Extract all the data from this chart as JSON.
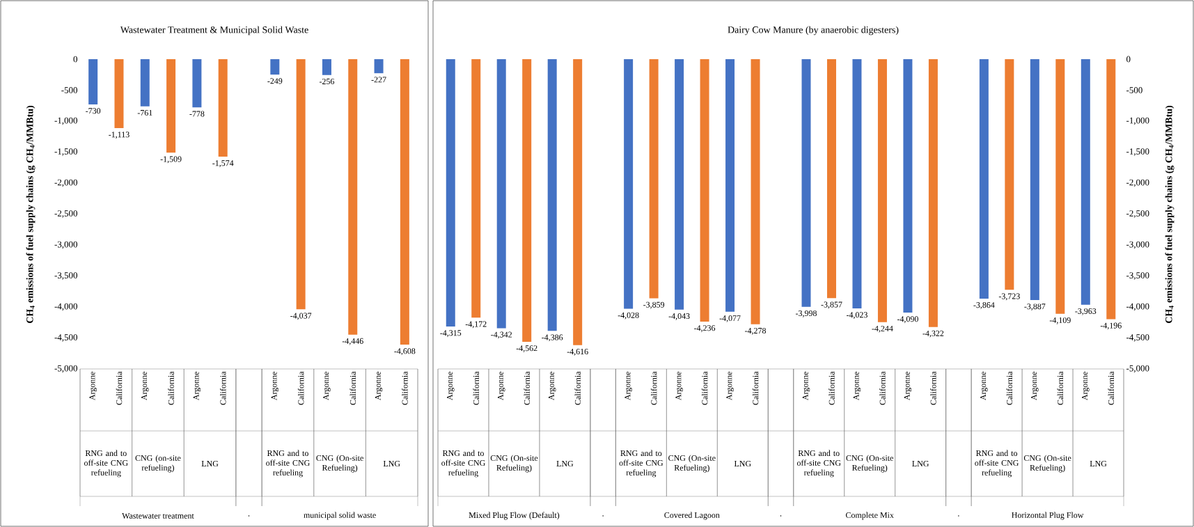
{
  "chart_data": [
    {
      "type": "bar",
      "title": "Wastewater Treatment & Municipal Solid Waste",
      "ylabel": "CH$_{4}$ emissions of fuel supply chains (g CH$_{4}$/MMBtu)",
      "categories": [
        "Argonne",
        "California",
        "Argonne",
        "California",
        "Argonne",
        "California",
        null,
        "Argonne",
        "California",
        "Argonne",
        "California",
        "Argonne",
        "California"
      ],
      "values": [
        -730,
        -1113,
        -761,
        -1509,
        -778,
        -1574,
        null,
        -249,
        -4037,
        -256,
        -4446,
        -227,
        -4608
      ],
      "value_labels": [
        "-730",
        "-1,113",
        "-761",
        "-1,509",
        "-778",
        "-1,574",
        null,
        "-249",
        "-4,037",
        "-256",
        "-4,446",
        "-227",
        "-4,608"
      ],
      "colors": [
        "#4472c4",
        "#ed7d31",
        "#4472c4",
        "#ed7d31",
        "#4472c4",
        "#ed7d31",
        null,
        "#4472c4",
        "#ed7d31",
        "#4472c4",
        "#ed7d31",
        "#4472c4",
        "#ed7d31"
      ],
      "ylim": [
        -5000,
        0
      ],
      "yticks": [
        {
          "value": -5000,
          "label": "-5,000"
        },
        {
          "value": -4500,
          "label": "-4,500"
        },
        {
          "value": -4000,
          "label": "-4,000"
        },
        {
          "value": -3500,
          "label": "-3,500"
        },
        {
          "value": -3000,
          "label": "-3,000"
        },
        {
          "value": -2500,
          "label": "-2,500"
        },
        {
          "value": -2000,
          "label": "-2,000"
        },
        {
          "value": -1500,
          "label": "-1,500"
        },
        {
          "value": -1000,
          "label": "-1,000"
        },
        {
          "value": -500,
          "label": "-500"
        },
        0
      ],
      "annotations": [
        "RNG and to off-site CNG refueling",
        "CNG (on-site refueling)",
        "LNG",
        "RNG and to off-site CNG refueling",
        "CNG (On-site Refueling)",
        "LNG",
        "Wastewater treatment",
        ".",
        "municipal solid waste"
      ]
    },
    {
      "type": "bar",
      "title": "Dairy Cow Manure (by anaerobic digesters)",
      "ylabel": "CH$_{4}$ emissions of fuel supply chains (g CH$_{4}$/MMBtu)",
      "categories": [
        "Argonne",
        "California",
        "Argonne",
        "California",
        "Argonne",
        "California",
        null,
        "Argonne",
        "California",
        "Argonne",
        "California",
        "Argonne",
        "California",
        null,
        "Argonne",
        "California",
        "Argonne",
        "California",
        "Argonne",
        "California",
        null,
        "Argonne",
        "California",
        "Argonne",
        "California",
        "Argonne",
        "California"
      ],
      "values": [
        -4315,
        -4172,
        -4342,
        -4562,
        -4386,
        -4616,
        null,
        -4028,
        -3859,
        -4043,
        -4236,
        -4077,
        -4278,
        null,
        -3998,
        -3857,
        -4023,
        -4244,
        -4090,
        -4322,
        null,
        -3864,
        -3723,
        -3887,
        -4109,
        -3963,
        -4196
      ],
      "value_labels": [
        "-4,315",
        "-4,172",
        "-4,342",
        "-4,562",
        "-4,386",
        "-4,616",
        null,
        "-4,028",
        "-3,859",
        "-4,043",
        "-4,236",
        "-4,077",
        "-4,278",
        null,
        "-3,998",
        "-3,857",
        "-4,023",
        "-4,244",
        "-4,090",
        "-4,322",
        null,
        "-3,864",
        "-3,723",
        "-3,887",
        "-4,109",
        "-3,963",
        "-4,196"
      ],
      "colors": [
        "#4472c4",
        "#ed7d31",
        "#4472c4",
        "#ed7d31",
        "#4472c4",
        "#ed7d31",
        null,
        "#4472c4",
        "#ed7d31",
        "#4472c4",
        "#ed7d31",
        "#4472c4",
        "#ed7d31",
        null,
        "#4472c4",
        "#ed7d31",
        "#4472c4",
        "#ed7d31",
        "#4472c4",
        "#ed7d31",
        null,
        "#4472c4",
        "#ed7d31",
        "#4472c4",
        "#ed7d31",
        "#4472c4",
        "#ed7d31"
      ],
      "ylim": [
        -5000,
        0
      ],
      "yticks": [
        {
          "value": -5000,
          "label": "-5,000"
        },
        {
          "value": -4500,
          "label": "-4,500"
        },
        {
          "value": -4000,
          "label": "-4,000"
        },
        {
          "value": -3500,
          "label": "-3,500"
        },
        {
          "value": -3000,
          "label": "-3,000"
        },
        {
          "value": -2500,
          "label": "-2,500"
        },
        {
          "value": -2000,
          "label": "-2,000"
        },
        {
          "value": -1500,
          "label": "-1,500"
        },
        {
          "value": -1000,
          "label": "-1,000"
        },
        {
          "value": -500,
          "label": "-500"
        },
        0
      ],
      "annotations": [
        "RNG and to off-site CNG refueling",
        "CNG (On-site Refueling)",
        "LNG",
        "RNG and to off-site CNG refueling",
        "CNG (On-site Refueling)",
        "LNG",
        "RNG and to off-site CNG refueling",
        "CNG (On-site Refueling)",
        "LNG",
        "RNG and to off-site CNG refueling",
        "CNG (On-site Refueling)",
        "LNG",
        "Mixed Plug Flow (Default)",
        ".",
        "Covered Lagoon",
        ".",
        "Complete Mix",
        ".",
        "Horizontal Plug Flow"
      ]
    }
  ]
}
